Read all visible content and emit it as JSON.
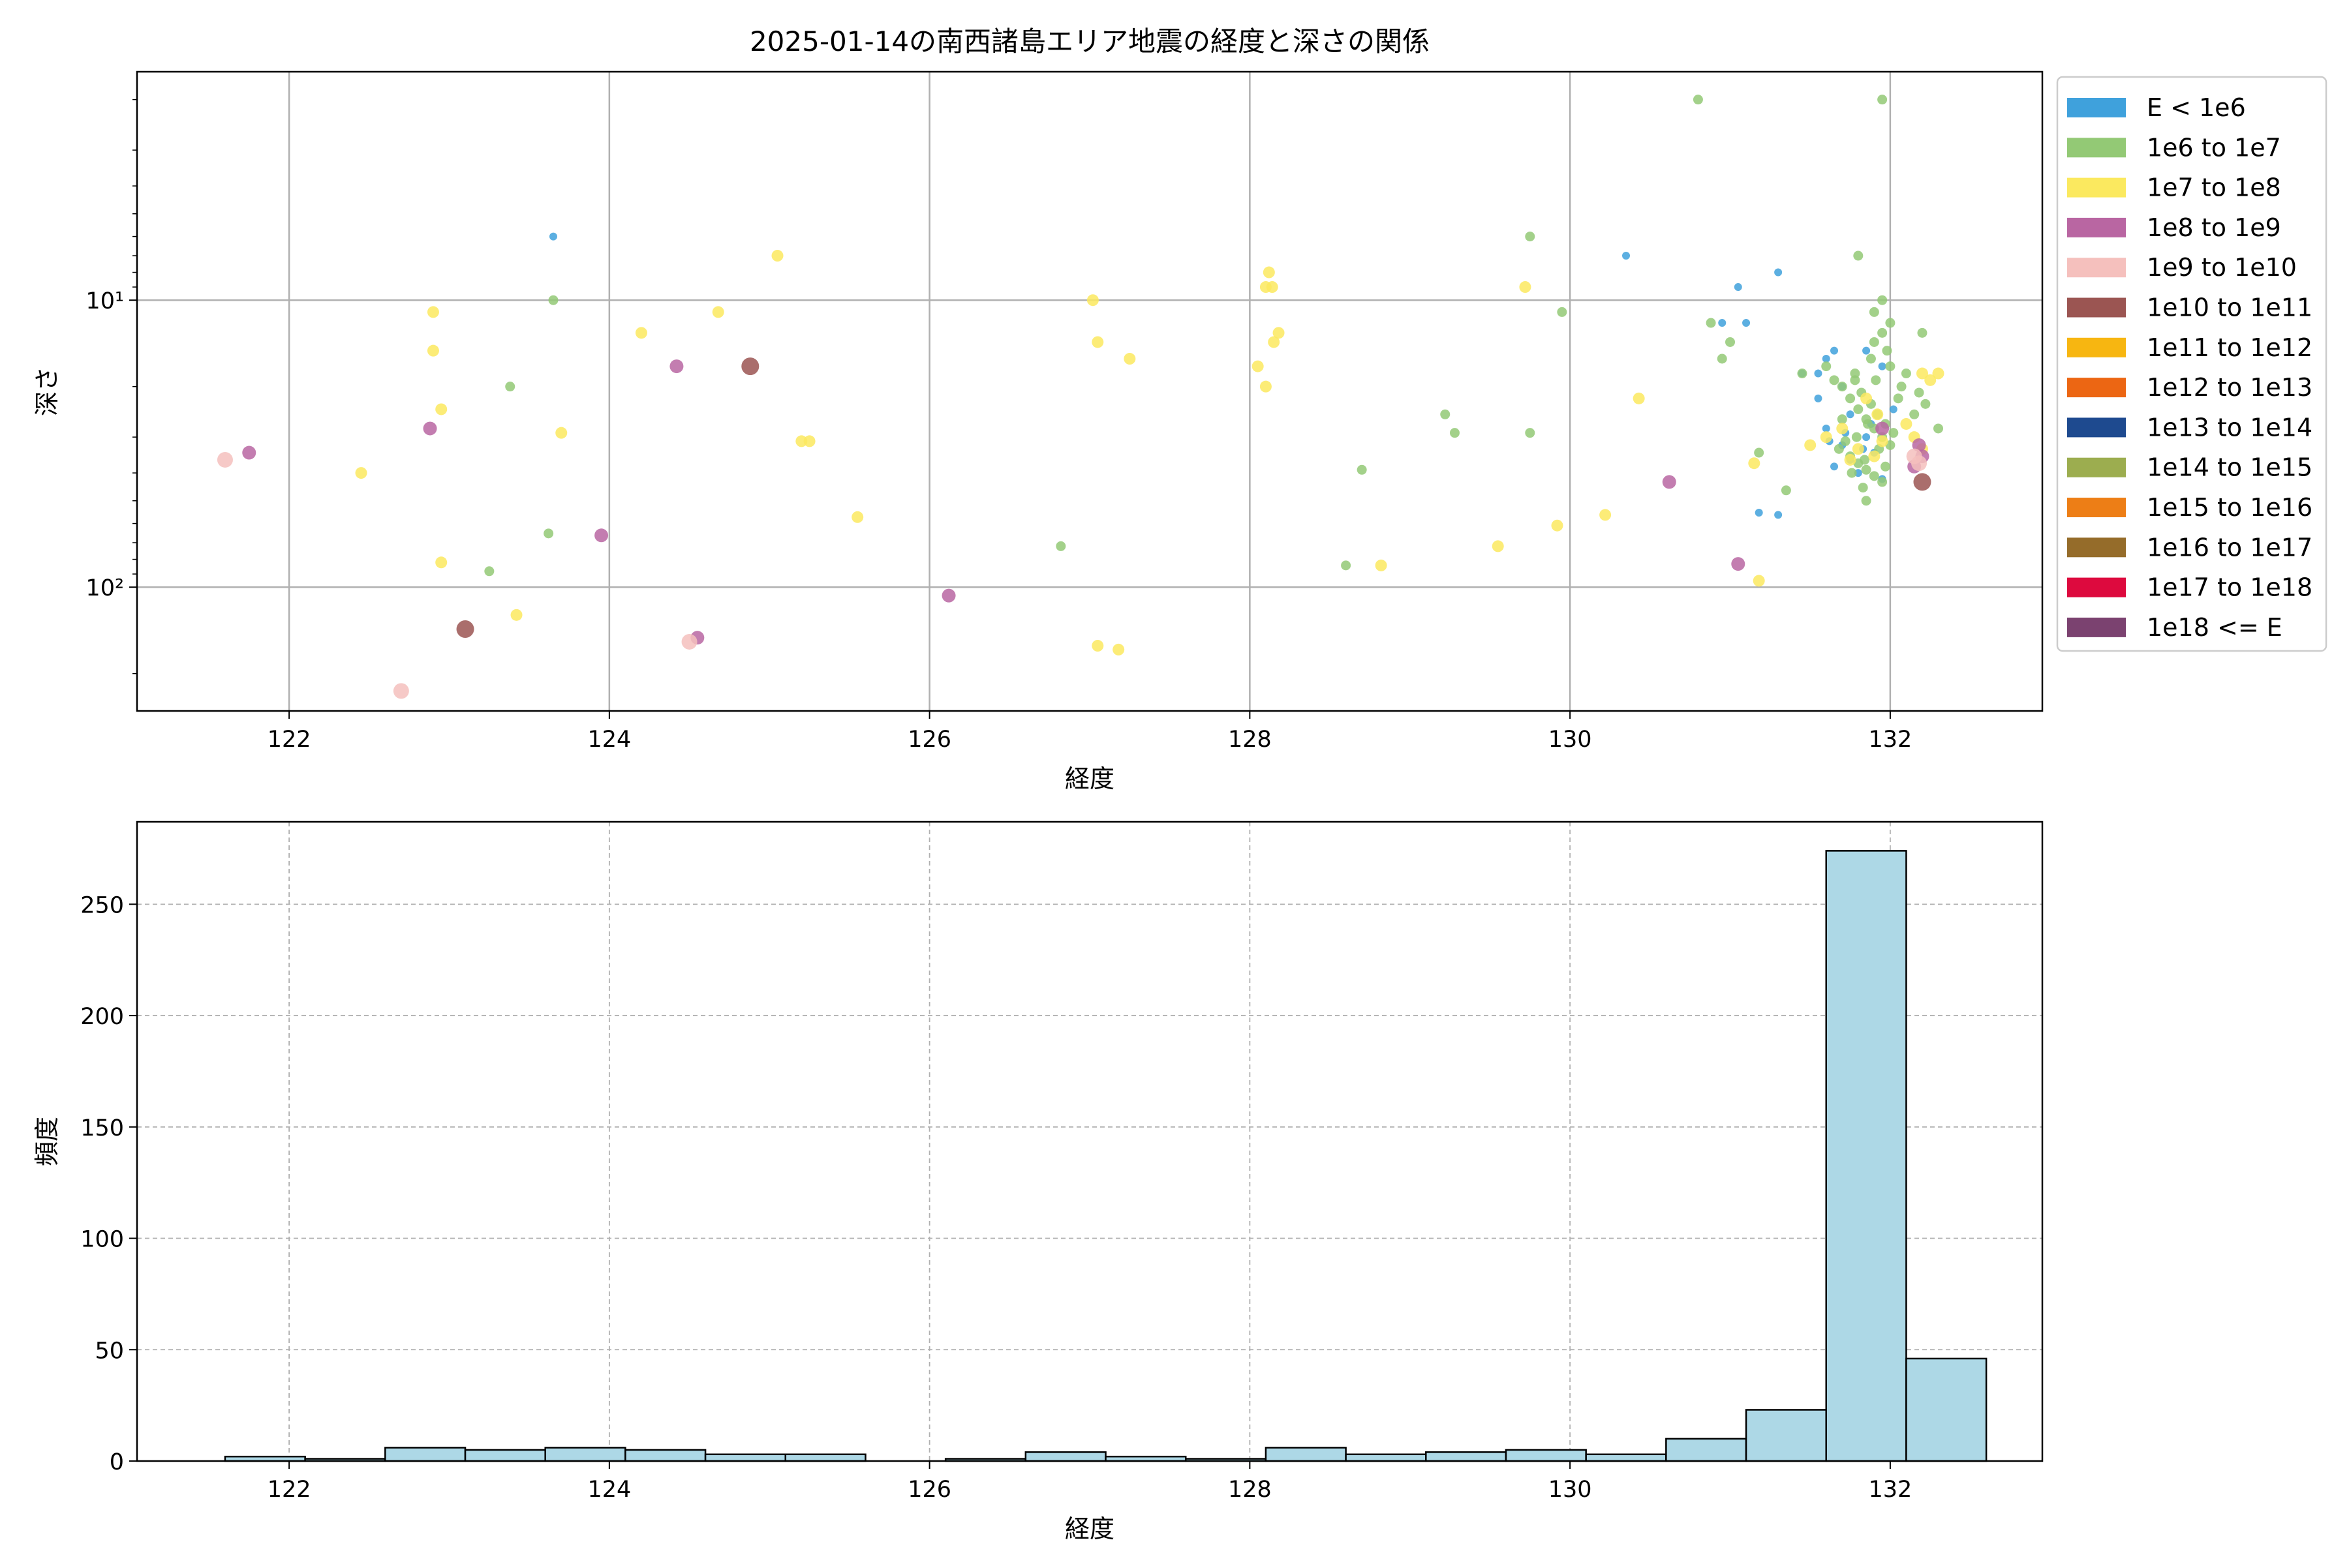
{
  "chart_data": [
    {
      "type": "scatter",
      "title": "2025-01-14の南西諸島エリア地震の経度と深さの関係",
      "xlabel": "経度",
      "ylabel": "深さ",
      "xlim": [
        121.05,
        132.95
      ],
      "ylim": [
        270,
        1.6
      ],
      "y_scale": "log",
      "y_inverted": true,
      "xticks": [
        122,
        124,
        126,
        128,
        130,
        132
      ],
      "xtick_labels": [
        "122",
        "124",
        "126",
        "128",
        "130",
        "132"
      ],
      "yticks": [
        10,
        100
      ],
      "ytick_labels": [
        "10¹",
        "10²"
      ],
      "grid": true,
      "legend_position": "outside-right",
      "legend": [
        {
          "label": "E < 1e6",
          "color": "#3fa1dc"
        },
        {
          "label": "1e6 to 1e7",
          "color": "#93c975"
        },
        {
          "label": "1e7 to 1e8",
          "color": "#fbe95f"
        },
        {
          "label": "1e8 to 1e9",
          "color": "#b966a2"
        },
        {
          "label": "1e9 to 1e10",
          "color": "#f5c0bd"
        },
        {
          "label": "1e10 to 1e11",
          "color": "#9b5552"
        },
        {
          "label": "1e11 to 1e12",
          "color": "#f7b611"
        },
        {
          "label": "1e12 to 1e13",
          "color": "#ec6613"
        },
        {
          "label": "1e13 to 1e14",
          "color": "#1e4a8f"
        },
        {
          "label": "1e14 to 1e15",
          "color": "#9cad4f"
        },
        {
          "label": "1e15 to 1e16",
          "color": "#ed7e16"
        },
        {
          "label": "1e16 to 1e17",
          "color": "#956c2a"
        },
        {
          "label": "1e17 to 1e18",
          "color": "#dd0a3e"
        },
        {
          "label": "1e18 <= E",
          "color": "#7b4270"
        }
      ],
      "series": [
        {
          "class": 0,
          "points": [
            [
              123.65,
              6
            ],
            [
              130.35,
              7
            ],
            [
              131.05,
              9
            ],
            [
              131.3,
              8
            ],
            [
              130.95,
              12
            ],
            [
              131.1,
              12
            ],
            [
              131.6,
              16
            ],
            [
              131.65,
              15
            ],
            [
              131.55,
              18
            ],
            [
              131.85,
              15
            ],
            [
              131.45,
              18
            ],
            [
              131.7,
              20
            ],
            [
              131.95,
              17
            ],
            [
              131.55,
              22
            ],
            [
              131.75,
              25
            ],
            [
              131.6,
              28
            ],
            [
              131.85,
              30
            ],
            [
              131.7,
              32
            ],
            [
              131.9,
              34
            ],
            [
              131.65,
              38
            ],
            [
              131.8,
              40
            ],
            [
              131.95,
              42
            ],
            [
              131.75,
              36
            ],
            [
              131.88,
              27
            ],
            [
              131.62,
              31
            ],
            [
              132.02,
              24
            ],
            [
              131.72,
              29
            ],
            [
              131.83,
              33
            ],
            [
              131.18,
              55
            ],
            [
              131.3,
              56
            ]
          ]
        },
        {
          "class": 1,
          "points": [
            [
              123.65,
              10
            ],
            [
              123.38,
              20
            ],
            [
              123.62,
              65
            ],
            [
              123.25,
              88
            ],
            [
              126.82,
              72
            ],
            [
              128.6,
              84
            ],
            [
              128.7,
              39
            ],
            [
              129.22,
              25
            ],
            [
              129.28,
              29
            ],
            [
              129.75,
              6
            ],
            [
              129.95,
              11
            ],
            [
              129.75,
              29
            ],
            [
              130.8,
              2
            ],
            [
              131.95,
              2
            ],
            [
              130.88,
              12
            ],
            [
              131.0,
              14
            ],
            [
              130.95,
              16
            ],
            [
              131.18,
              34
            ],
            [
              131.35,
              46
            ],
            [
              131.45,
              18
            ],
            [
              131.8,
              7
            ],
            [
              131.85,
              50
            ],
            [
              131.9,
              11
            ],
            [
              131.95,
              10
            ],
            [
              132.0,
              12
            ],
            [
              132.1,
              18
            ],
            [
              132.15,
              25
            ],
            [
              132.2,
              13
            ],
            [
              132.3,
              28
            ],
            [
              131.7,
              20
            ],
            [
              131.75,
              22
            ],
            [
              131.8,
              24
            ],
            [
              131.85,
              26
            ],
            [
              131.9,
              28
            ],
            [
              131.95,
              30
            ],
            [
              132.0,
              32
            ],
            [
              131.78,
              19
            ],
            [
              131.82,
              21
            ],
            [
              131.88,
              23
            ],
            [
              131.92,
              25
            ],
            [
              131.97,
              27
            ],
            [
              132.02,
              29
            ],
            [
              131.72,
              31
            ],
            [
              131.68,
              33
            ],
            [
              131.75,
              35
            ],
            [
              131.8,
              37
            ],
            [
              131.85,
              39
            ],
            [
              131.9,
              41
            ],
            [
              131.95,
              43
            ],
            [
              131.6,
              17
            ],
            [
              131.65,
              19
            ],
            [
              132.05,
              22
            ],
            [
              131.83,
              45
            ],
            [
              131.88,
              16
            ],
            [
              131.78,
              18
            ],
            [
              132.18,
              21
            ],
            [
              132.22,
              23
            ],
            [
              131.7,
              26
            ],
            [
              131.9,
              14
            ],
            [
              131.95,
              13
            ],
            [
              131.98,
              15
            ],
            [
              132.0,
              17
            ],
            [
              131.86,
              27
            ],
            [
              131.79,
              30
            ],
            [
              131.93,
              33
            ],
            [
              132.07,
              20
            ],
            [
              131.76,
              40
            ],
            [
              131.84,
              36
            ],
            [
              131.91,
              19
            ],
            [
              131.97,
              38
            ]
          ]
        },
        {
          "class": 2,
          "points": [
            [
              122.45,
              40
            ],
            [
              122.9,
              11
            ],
            [
              122.9,
              15
            ],
            [
              122.95,
              24
            ],
            [
              122.95,
              82
            ],
            [
              123.42,
              125
            ],
            [
              123.7,
              29
            ],
            [
              124.2,
              13
            ],
            [
              124.68,
              11
            ],
            [
              125.05,
              7
            ],
            [
              125.2,
              31
            ],
            [
              125.25,
              31
            ],
            [
              125.55,
              57
            ],
            [
              127.02,
              10
            ],
            [
              127.05,
              14
            ],
            [
              127.05,
              160
            ],
            [
              127.18,
              165
            ],
            [
              127.25,
              16
            ],
            [
              128.05,
              17
            ],
            [
              128.1,
              20
            ],
            [
              128.1,
              9
            ],
            [
              128.12,
              8
            ],
            [
              128.14,
              9
            ],
            [
              128.15,
              14
            ],
            [
              128.18,
              13
            ],
            [
              128.82,
              84
            ],
            [
              129.55,
              72
            ],
            [
              129.72,
              9
            ],
            [
              129.92,
              61
            ],
            [
              130.22,
              56
            ],
            [
              130.43,
              22
            ],
            [
              131.15,
              37
            ],
            [
              131.18,
              95
            ],
            [
              131.5,
              32
            ],
            [
              131.6,
              30
            ],
            [
              131.7,
              28
            ],
            [
              131.8,
              33
            ],
            [
              131.9,
              35
            ],
            [
              131.95,
              31
            ],
            [
              132.1,
              27
            ],
            [
              132.2,
              18
            ],
            [
              132.25,
              19
            ],
            [
              132.3,
              18
            ],
            [
              132.2,
              33
            ],
            [
              131.75,
              36
            ],
            [
              131.85,
              22
            ],
            [
              131.92,
              25
            ],
            [
              132.15,
              30
            ]
          ]
        },
        {
          "class": 3,
          "points": [
            [
              121.75,
              34
            ],
            [
              122.88,
              28
            ],
            [
              123.95,
              66
            ],
            [
              124.42,
              17
            ],
            [
              124.55,
              150
            ],
            [
              126.12,
              107
            ],
            [
              130.62,
              43
            ],
            [
              131.05,
              83
            ],
            [
              132.18,
              32
            ],
            [
              132.2,
              35
            ],
            [
              131.95,
              28
            ],
            [
              132.15,
              38
            ]
          ]
        },
        {
          "class": 4,
          "points": [
            [
              121.6,
              36
            ],
            [
              122.7,
              230
            ],
            [
              124.5,
              155
            ],
            [
              132.15,
              35
            ],
            [
              132.18,
              37
            ]
          ]
        },
        {
          "class": 5,
          "points": [
            [
              123.1,
              140
            ],
            [
              124.88,
              17
            ],
            [
              132.2,
              43
            ]
          ]
        }
      ]
    },
    {
      "type": "bar",
      "subtype": "histogram",
      "xlabel": "経度",
      "ylabel": "頻度",
      "xlim": [
        121.05,
        132.95
      ],
      "ylim": [
        0,
        287
      ],
      "xticks": [
        122,
        124,
        126,
        128,
        130,
        132
      ],
      "xtick_labels": [
        "122",
        "124",
        "126",
        "128",
        "130",
        "132"
      ],
      "yticks": [
        0,
        50,
        100,
        150,
        200,
        250
      ],
      "ytick_labels": [
        "0",
        "50",
        "100",
        "150",
        "200",
        "250"
      ],
      "grid": true,
      "bar_color": "#add8e6",
      "bin_start": 121.6,
      "bin_width": 0.5,
      "values": [
        2,
        1,
        6,
        5,
        6,
        5,
        3,
        3,
        0,
        1,
        4,
        2,
        1,
        6,
        3,
        4,
        5,
        3,
        10,
        23,
        274,
        46
      ]
    }
  ]
}
